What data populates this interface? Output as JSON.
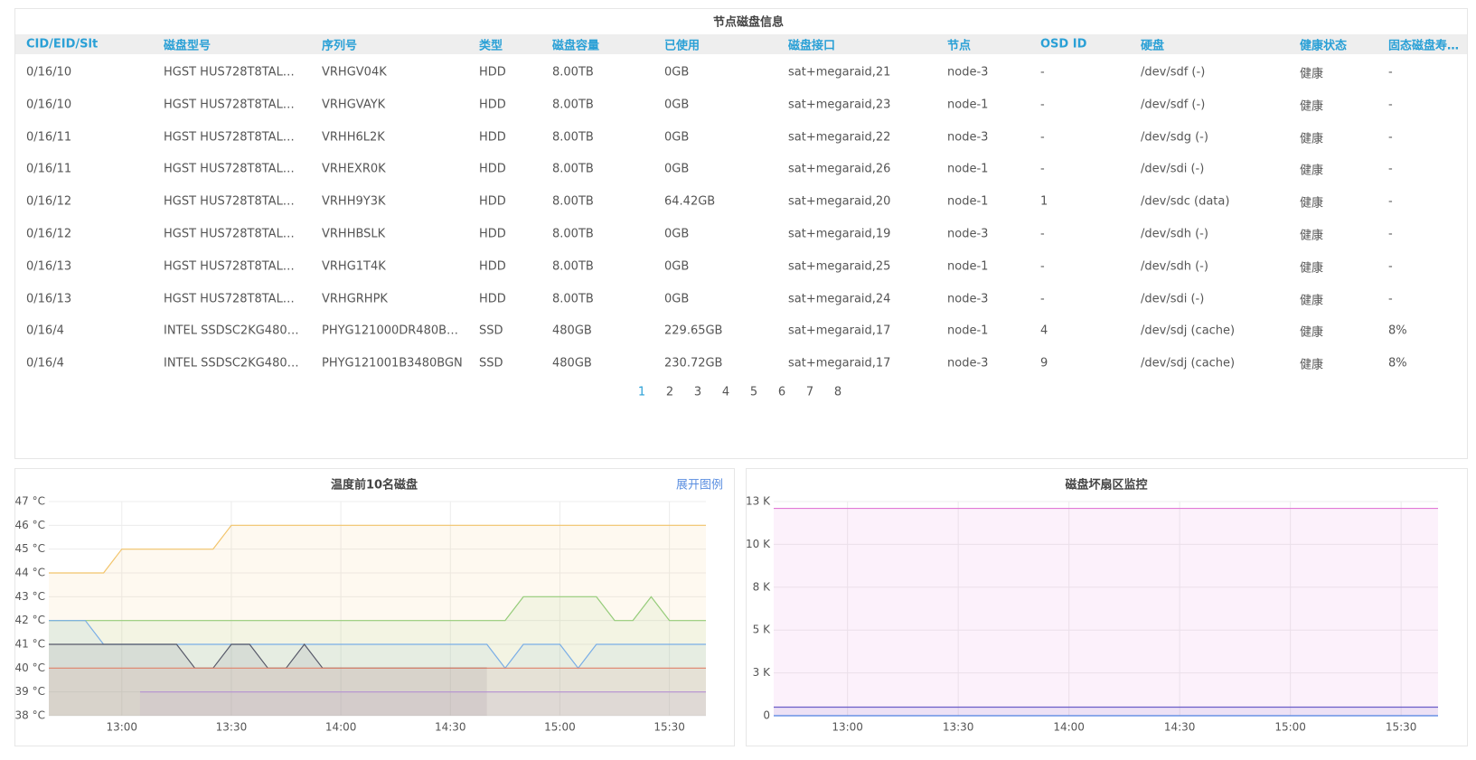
{
  "table": {
    "title": "节点磁盘信息",
    "headers": [
      "CID/EID/Slt",
      "磁盘型号",
      "序列号",
      "类型",
      "磁盘容量",
      "已使用",
      "磁盘接口",
      "节点",
      "OSD ID",
      "硬盘",
      "健康状态",
      "固态磁盘寿…"
    ],
    "rows": [
      [
        "0/16/10",
        "HGST HUS728T8TAL…",
        "VRHGV04K",
        "HDD",
        "8.00TB",
        "0GB",
        "sat+megaraid,21",
        "node-3",
        "-",
        "/dev/sdf (-)",
        "健康",
        "-"
      ],
      [
        "0/16/10",
        "HGST HUS728T8TAL…",
        "VRHGVAYK",
        "HDD",
        "8.00TB",
        "0GB",
        "sat+megaraid,23",
        "node-1",
        "-",
        "/dev/sdf (-)",
        "健康",
        "-"
      ],
      [
        "0/16/11",
        "HGST HUS728T8TAL…",
        "VRHH6L2K",
        "HDD",
        "8.00TB",
        "0GB",
        "sat+megaraid,22",
        "node-3",
        "-",
        "/dev/sdg (-)",
        "健康",
        "-"
      ],
      [
        "0/16/11",
        "HGST HUS728T8TAL…",
        "VRHEXR0K",
        "HDD",
        "8.00TB",
        "0GB",
        "sat+megaraid,26",
        "node-1",
        "-",
        "/dev/sdi (-)",
        "健康",
        "-"
      ],
      [
        "0/16/12",
        "HGST HUS728T8TAL…",
        "VRHH9Y3K",
        "HDD",
        "8.00TB",
        "64.42GB",
        "sat+megaraid,20",
        "node-1",
        "1",
        "/dev/sdc (data)",
        "健康",
        "-"
      ],
      [
        "0/16/12",
        "HGST HUS728T8TAL…",
        "VRHHBSLK",
        "HDD",
        "8.00TB",
        "0GB",
        "sat+megaraid,19",
        "node-3",
        "-",
        "/dev/sdh (-)",
        "健康",
        "-"
      ],
      [
        "0/16/13",
        "HGST HUS728T8TAL…",
        "VRHG1T4K",
        "HDD",
        "8.00TB",
        "0GB",
        "sat+megaraid,25",
        "node-1",
        "-",
        "/dev/sdh (-)",
        "健康",
        "-"
      ],
      [
        "0/16/13",
        "HGST HUS728T8TAL…",
        "VRHGRHPK",
        "HDD",
        "8.00TB",
        "0GB",
        "sat+megaraid,24",
        "node-3",
        "-",
        "/dev/sdi (-)",
        "健康",
        "-"
      ],
      [
        "0/16/4",
        "INTEL SSDSC2KG480…",
        "PHYG121000DR480B…",
        "SSD",
        "480GB",
        "229.65GB",
        "sat+megaraid,17",
        "node-1",
        "4",
        "/dev/sdj (cache)",
        "健康",
        "8%"
      ],
      [
        "0/16/4",
        "INTEL SSDSC2KG480…",
        "PHYG121001B3480BGN",
        "SSD",
        "480GB",
        "230.72GB",
        "sat+megaraid,17",
        "node-3",
        "9",
        "/dev/sdj (cache)",
        "健康",
        "8%"
      ]
    ],
    "pages": [
      1,
      2,
      3,
      4,
      5,
      6,
      7,
      8
    ],
    "current_page": 1
  },
  "chart_data": [
    {
      "type": "line",
      "title": "温度前10名磁盘",
      "link": "展开图例",
      "x": [
        "12:40",
        "12:45",
        "12:50",
        "12:55",
        "13:00",
        "13:05",
        "13:10",
        "13:15",
        "13:20",
        "13:25",
        "13:30",
        "13:35",
        "13:40",
        "13:45",
        "13:50",
        "13:55",
        "14:00",
        "14:05",
        "14:10",
        "14:15",
        "14:20",
        "14:25",
        "14:30",
        "14:35",
        "14:40",
        "14:45",
        "14:50",
        "14:55",
        "15:00",
        "15:05",
        "15:10",
        "15:15",
        "15:20",
        "15:25",
        "15:30",
        "15:35",
        "15:40"
      ],
      "xlim": [
        "12:40",
        "15:40"
      ],
      "xticks": [
        "13:00",
        "13:30",
        "14:00",
        "14:30",
        "15:00",
        "15:30"
      ],
      "ylim": [
        38,
        47
      ],
      "yticks": [
        {
          "value": 38,
          "label": "38 °C"
        },
        {
          "value": 39,
          "label": "39 °C"
        },
        {
          "value": 40,
          "label": "40 °C"
        },
        {
          "value": 41,
          "label": "41 °C"
        },
        {
          "value": 42,
          "label": "42 °C"
        },
        {
          "value": 43,
          "label": "43 °C"
        },
        {
          "value": 44,
          "label": "44 °C"
        },
        {
          "value": 45,
          "label": "45 °C"
        },
        {
          "value": 46,
          "label": "46 °C"
        },
        {
          "value": 47,
          "label": "47 °C"
        }
      ],
      "grid": true,
      "series": [
        {
          "color": "#f2c46b",
          "values": [
            44,
            44,
            44,
            44,
            45,
            45,
            45,
            45,
            45,
            45,
            46,
            46,
            46,
            46,
            46,
            46,
            46,
            46,
            46,
            46,
            46,
            46,
            46,
            46,
            46,
            46,
            46,
            46,
            46,
            46,
            46,
            46,
            46,
            46,
            46,
            46,
            46
          ]
        },
        {
          "color": "#96cc7a",
          "values": [
            42,
            42,
            42,
            42,
            42,
            42,
            42,
            42,
            42,
            42,
            42,
            42,
            42,
            42,
            42,
            42,
            42,
            42,
            42,
            42,
            42,
            42,
            42,
            42,
            42,
            42,
            43,
            43,
            43,
            43,
            43,
            42,
            42,
            43,
            42,
            42,
            42
          ]
        },
        {
          "color": "#7aaee6",
          "values": [
            42,
            42,
            42,
            41,
            41,
            41,
            41,
            41,
            41,
            41,
            41,
            41,
            41,
            41,
            41,
            41,
            41,
            41,
            41,
            41,
            41,
            41,
            41,
            41,
            41,
            40,
            41,
            41,
            41,
            40,
            41,
            41,
            41,
            41,
            41,
            41,
            41
          ]
        },
        {
          "color": "#565868",
          "values": [
            41,
            41,
            41,
            41,
            41,
            41,
            41,
            41,
            40,
            40,
            41,
            41,
            40,
            40,
            41,
            40,
            40,
            40,
            40,
            40,
            40,
            40,
            40,
            40,
            40,
            null,
            null,
            null,
            null,
            null,
            null,
            null,
            null,
            null,
            null,
            null,
            null
          ]
        },
        {
          "color": "#e0846c",
          "values": [
            40,
            40,
            40,
            40,
            40,
            40,
            40,
            40,
            40,
            40,
            40,
            40,
            40,
            40,
            40,
            40,
            40,
            40,
            40,
            40,
            40,
            40,
            40,
            40,
            40,
            40,
            40,
            40,
            40,
            40,
            40,
            40,
            40,
            40,
            40,
            40,
            40
          ]
        },
        {
          "color": "#b592d2",
          "values": [
            null,
            null,
            null,
            null,
            null,
            39,
            39,
            39,
            39,
            39,
            39,
            39,
            39,
            39,
            39,
            39,
            39,
            39,
            39,
            39,
            39,
            39,
            39,
            39,
            39,
            39,
            39,
            39,
            39,
            39,
            39,
            39,
            39,
            39,
            39,
            39,
            39
          ]
        }
      ]
    },
    {
      "type": "line",
      "title": "磁盘坏扇区监控",
      "x": [
        "12:40",
        "15:40"
      ],
      "xlim": [
        "12:40",
        "15:40"
      ],
      "xticks": [
        "13:00",
        "13:30",
        "14:00",
        "14:30",
        "15:00",
        "15:30"
      ],
      "ylim": [
        0,
        12500
      ],
      "yticks": [
        0,
        {
          "value": 2500,
          "label": "3 K"
        },
        {
          "value": 5000,
          "label": "5 K"
        },
        {
          "value": 7500,
          "label": "8 K"
        },
        {
          "value": 10000,
          "label": "10 K"
        },
        {
          "value": 12500,
          "label": "13 K"
        }
      ],
      "grid": true,
      "series": [
        {
          "color": "#e27ad6",
          "values": [
            12100,
            12100
          ]
        },
        {
          "color": "#6a5cc8",
          "values": [
            500,
            500
          ]
        },
        {
          "color": "#4d7fe0",
          "values": [
            0,
            0
          ]
        }
      ]
    }
  ]
}
